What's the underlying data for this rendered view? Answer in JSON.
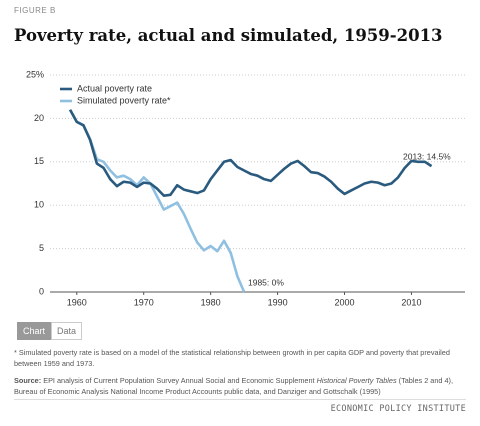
{
  "figure_label": "FIGURE B",
  "chart_data": {
    "type": "line",
    "title": "Poverty rate, actual and simulated, 1959-2013",
    "x": [
      1959,
      1960,
      1961,
      1962,
      1963,
      1964,
      1965,
      1966,
      1967,
      1968,
      1969,
      1970,
      1971,
      1972,
      1973,
      1974,
      1975,
      1976,
      1977,
      1978,
      1979,
      1980,
      1981,
      1982,
      1983,
      1984,
      1985,
      1986,
      1987,
      1988,
      1989,
      1990,
      1991,
      1992,
      1993,
      1994,
      1995,
      1996,
      1997,
      1998,
      1999,
      2000,
      2001,
      2002,
      2003,
      2004,
      2005,
      2006,
      2007,
      2008,
      2009,
      2010,
      2011,
      2012,
      2013
    ],
    "series": [
      {
        "name": "Actual poverty rate",
        "color": "#2a5b7e",
        "values": [
          21.0,
          19.6,
          19.2,
          17.5,
          14.8,
          14.3,
          13.0,
          12.2,
          12.7,
          12.6,
          12.1,
          12.6,
          12.5,
          11.9,
          11.1,
          11.2,
          12.3,
          11.8,
          11.6,
          11.4,
          11.7,
          13.0,
          14.0,
          15.0,
          15.2,
          14.4,
          14.0,
          13.6,
          13.4,
          13.0,
          12.8,
          13.5,
          14.2,
          14.8,
          15.1,
          14.5,
          13.8,
          13.7,
          13.3,
          12.7,
          11.9,
          11.3,
          11.7,
          12.1,
          12.5,
          12.7,
          12.6,
          12.3,
          12.5,
          13.2,
          14.3,
          15.1,
          15.0,
          15.0,
          14.5
        ]
      },
      {
        "name": "Simulated poverty rate*",
        "color": "#8fc0e2",
        "values": [
          21.0,
          19.6,
          19.2,
          17.6,
          15.3,
          15.0,
          14.0,
          13.2,
          13.4,
          13.0,
          12.3,
          13.2,
          12.5,
          11.0,
          9.5,
          9.9,
          10.3,
          9.0,
          7.3,
          5.7,
          4.8,
          5.3,
          4.7,
          5.9,
          4.5,
          1.8,
          0,
          null,
          null,
          null,
          null,
          null,
          null,
          null,
          null,
          null,
          null,
          null,
          null,
          null,
          null,
          null,
          null,
          null,
          null,
          null,
          null,
          null,
          null,
          null,
          null,
          null,
          null,
          null,
          null
        ]
      }
    ],
    "xlim": [
      1956,
      2018
    ],
    "xticks": [
      1960,
      1970,
      1980,
      1990,
      2000,
      2010
    ],
    "ylim": [
      0,
      25
    ],
    "yticks": [
      0,
      5,
      10,
      15,
      20,
      {
        "value": 25,
        "label": "25%"
      }
    ],
    "grid": true,
    "legend": "top-left",
    "annotations": [
      "2013: 14.5%",
      "1985: 0%"
    ]
  },
  "tabs": [
    "Chart",
    "Data"
  ],
  "footnote": "* Simulated poverty rate is based on a model of the statistical relationship between growth in per capita GDP and poverty that prevailed between 1959 and 1973.",
  "source": {
    "label": "Source:",
    "before": "EPI analysis of Current Population Survey Annual Social and Economic Supplement",
    "italic": "Historical Poverty Tables",
    "after": "(Tables 2 and 4), Bureau of Economic Analysis National Income Product Accounts public data, and Danziger and Gottschalk (1995)"
  },
  "footer": "ECONOMIC POLICY INSTITUTE"
}
